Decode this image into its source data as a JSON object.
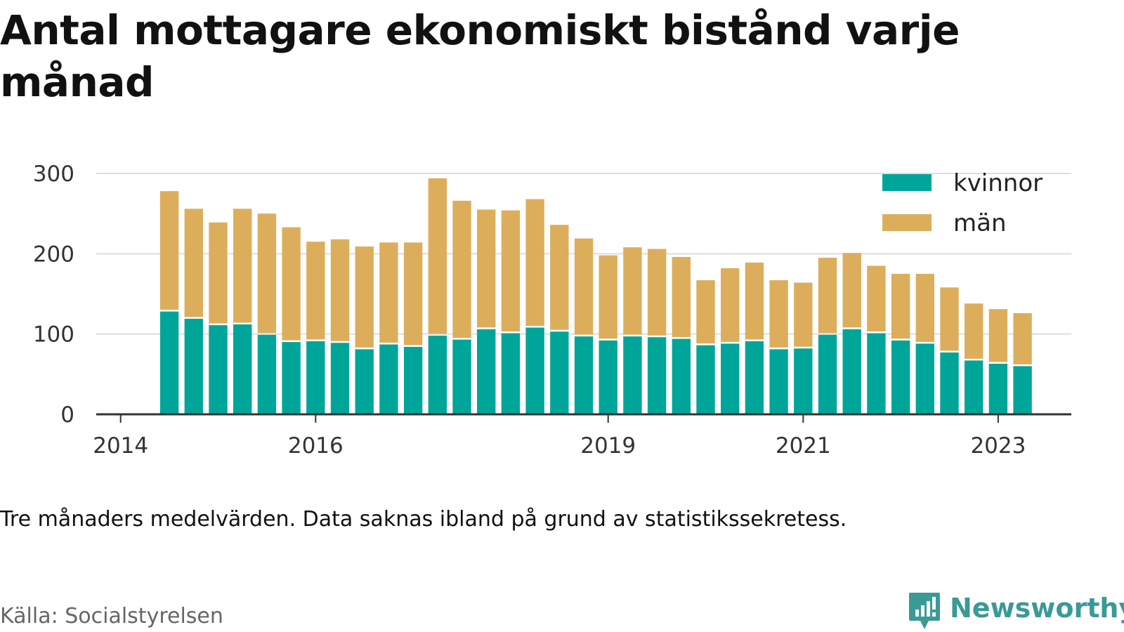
{
  "title": "Antal mottagare ekonomiskt bistånd varje månad",
  "subtitle": "Tre månaders medelvärden. Data saknas ibland på grund av statistikssekretess.",
  "source": "Källa: Socialstyrelsen",
  "brand": "Newsworthy",
  "colors": {
    "kvinnor": "#00a59a",
    "man": "#dcae5c",
    "grid": "#dddddd",
    "axis": "#333333",
    "brand": "#3a9a96"
  },
  "chart_data": {
    "type": "bar",
    "stacked": true,
    "title": "Antal mottagare ekonomiskt bistånd varje månad",
    "xlabel": "",
    "ylabel": "",
    "ylim": [
      0,
      300
    ],
    "yticks": [
      0,
      100,
      200,
      300
    ],
    "xlim": [
      2013.75,
      2023.75
    ],
    "xticks": [
      2014,
      2016,
      2019,
      2021,
      2023
    ],
    "grid": true,
    "legend_position": "top-right",
    "x": [
      2014.5,
      2014.75,
      2015.0,
      2015.25,
      2015.5,
      2015.75,
      2016.0,
      2016.25,
      2016.5,
      2016.75,
      2017.0,
      2017.25,
      2017.5,
      2017.75,
      2018.0,
      2018.25,
      2018.5,
      2018.75,
      2019.0,
      2019.25,
      2019.5,
      2019.75,
      2020.0,
      2020.25,
      2020.5,
      2020.75,
      2021.0,
      2021.25,
      2021.5,
      2021.75,
      2022.0,
      2022.25,
      2022.5,
      2022.75,
      2023.0,
      2023.25
    ],
    "series": [
      {
        "name": "kvinnor",
        "values": [
          128,
          119,
          111,
          112,
          99,
          90,
          91,
          89,
          81,
          87,
          84,
          98,
          93,
          106,
          101,
          108,
          103,
          97,
          92,
          97,
          96,
          94,
          86,
          88,
          91,
          81,
          82,
          99,
          106,
          101,
          92,
          88,
          77,
          67,
          63,
          60
        ]
      },
      {
        "name": "män",
        "values": [
          150,
          137,
          128,
          144,
          151,
          143,
          124,
          129,
          128,
          127,
          130,
          196,
          173,
          149,
          153,
          160,
          133,
          122,
          106,
          111,
          110,
          102,
          81,
          94,
          98,
          86,
          82,
          96,
          95,
          84,
          83,
          87,
          81,
          71,
          68,
          66
        ]
      }
    ]
  }
}
